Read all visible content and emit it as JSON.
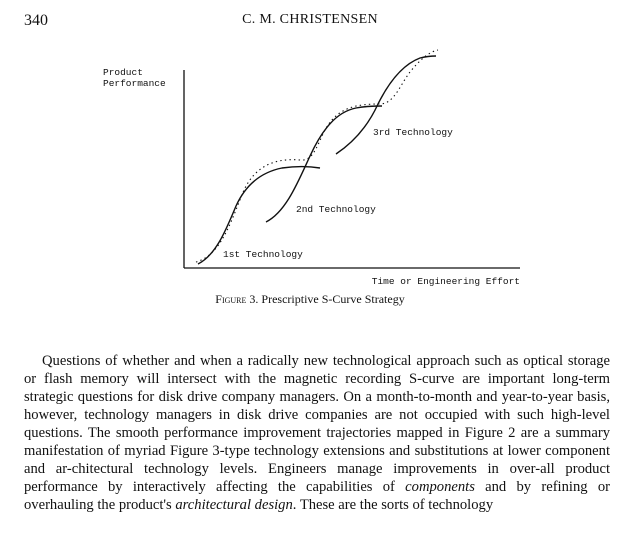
{
  "header": {
    "page_number": "340",
    "running_title": "C. M. CHRISTENSEN"
  },
  "figure": {
    "ylabel_line1": "Product",
    "ylabel_line2": "Performance",
    "xlabel": "Time or Engineering Effort",
    "curve_labels": [
      "1st Technology",
      "2nd Technology",
      "3rd Technology"
    ],
    "caption_label": "Figure 3.",
    "caption_text": "Prescriptive S-Curve Strategy"
  },
  "chart_data": {
    "type": "line",
    "xlabel": "Time or Engineering Effort",
    "ylabel": "Product Performance",
    "axes_numbered": false,
    "grid": false,
    "series": [
      {
        "name": "1st Technology",
        "style": "solid"
      },
      {
        "name": "2nd Technology",
        "style": "solid"
      },
      {
        "name": "3rd Technology",
        "style": "solid"
      },
      {
        "style": "dotted-envelope"
      }
    ]
  },
  "body": {
    "paragraph_before_components": "Questions of whether and when a radically new technological approach such as optical storage or flash memory will intersect with the magnetic recording S-curve are important long-term strategic questions for disk drive company managers. On a month-to-month and year-to-year basis, however, technology managers in disk drive companies are not occupied with such high-level questions. The smooth performance improvement trajectories mapped in Figure 2 are a summary manifestation of myriad Figure 3-type technology extensions and substitutions at lower component and ar-chitectural technology levels. Engineers manage improvements in over-all product performance by interactively affecting the capabilities of ",
    "em_components": "components",
    "paragraph_middle": " and by refining or overhauling the product's ",
    "em_architectural": "architectural design",
    "paragraph_after": ". These are the sorts of technology"
  }
}
